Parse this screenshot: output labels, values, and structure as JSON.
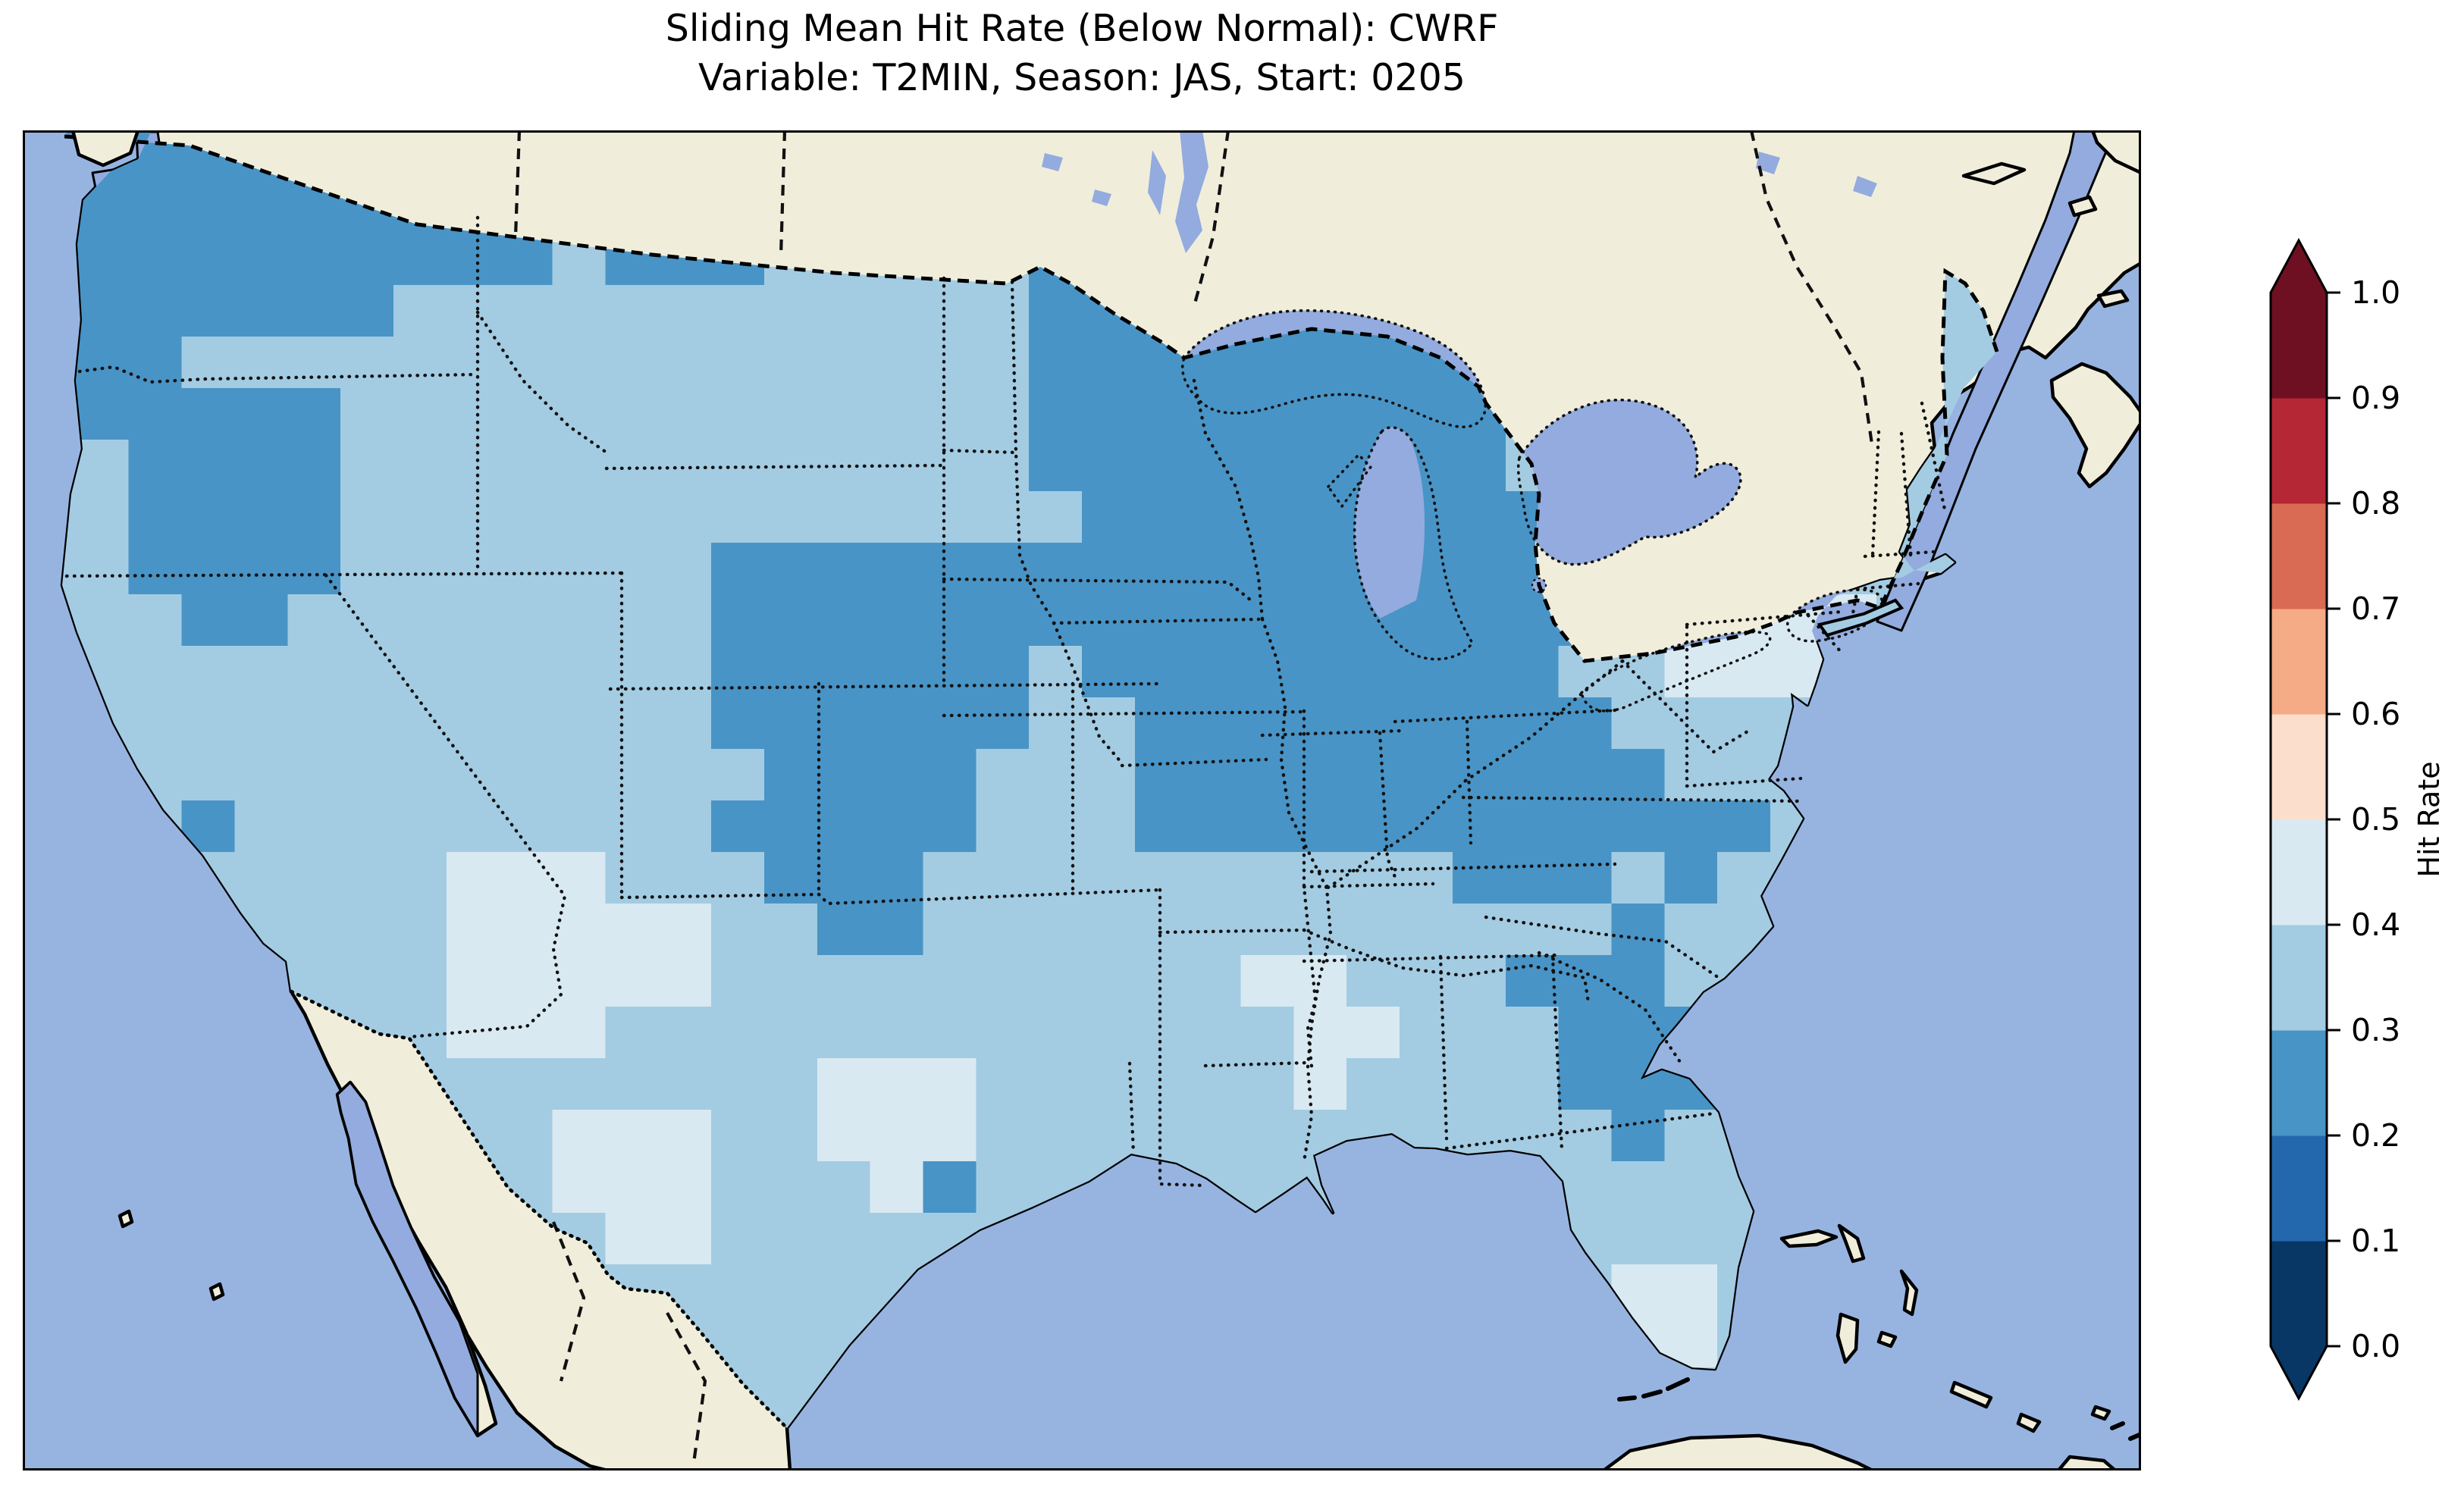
{
  "figure": {
    "title_line1": "Sliding Mean Hit Rate (Below Normal): CWRF",
    "title_line2": "Variable: T2MIN, Season: JAS, Start: 0205"
  },
  "chart_data": {
    "type": "heatmap",
    "subtype": "gridded_geographic_map_conus",
    "title": "Sliding Mean Hit Rate (Below Normal): CWRF",
    "subtitle": "Variable: T2MIN, Season: JAS, Start: 0205",
    "model": "CWRF",
    "variable": "T2MIN",
    "season": "JAS",
    "start": "0205",
    "metric": "Sliding Mean Hit Rate",
    "category": "Below Normal",
    "legend_position": "right colorbar",
    "colorbar": {
      "label": "Hit Rate",
      "ticks": [
        "0.0",
        "0.1",
        "0.2",
        "0.3",
        "0.4",
        "0.5",
        "0.6",
        "0.7",
        "0.8",
        "0.9",
        "1.0"
      ],
      "bin_edges": [
        0.0,
        0.1,
        0.2,
        0.3,
        0.4,
        0.5,
        0.6,
        0.7,
        0.8,
        0.9,
        1.0
      ],
      "bin_colors": [
        "#083766",
        "#2368ac",
        "#4994c6",
        "#a3cce3",
        "#d9e9f2",
        "#fbdecb",
        "#f5ab86",
        "#d96a53",
        "#b52734",
        "#6e1021"
      ],
      "extend": "both",
      "under_color": "#083766",
      "over_color": "#6e1021",
      "orientation": "vertical"
    },
    "map_colors": {
      "ocean": "#97b4e1",
      "land_no_data": "#f0eedb",
      "lakes_rivers": "#93abde",
      "coastline": "#000000",
      "state_borders": "dotted black",
      "international_borders": "dashed black"
    },
    "value_range_observed": [
      0.2,
      0.5
    ],
    "grid": {
      "ncols": 40,
      "nrows": 26,
      "cell_legend": {
        "2": "hit rate 0.2-0.3",
        "3": "hit rate 0.3-0.4",
        "4": "hit rate 0.4-0.5"
      },
      "rows": [
        "2222222222333333333333333333333333333333",
        "2222222222322233333333333333333333333333",
        "2222222222322233333222333333333333333333",
        "2222222333333333333222222222333333333333",
        "2223333333333333333222222222333333333333",
        "2222223333333333333222222222333334433333",
        "3322223333333333333222222222333334333333",
        "3322223333333333333322222222223333333333",
        "3322223333333222222222222222224444333333",
        "3332233333333222222222222222224444433333",
        "3333333333333222222322222222233444433333",
        "3333333333333222222332222222223333333333",
        "3333333333333322223332222222222333333333",
        "3332333333333222223332222222222223333333",
        "3333333344433322233333333332223233333333",
        "3333333344444332233333333333332333333333",
        "3333333344444333333333344333222333333333",
        "3333333344433333333333334433322233333333",
        "3333333333333334443333334333322233333333",
        "3333333333444334443333333333332333333333",
        "3333333333444333423333333333333333333333",
        "3333333333344333333333333333333333333333",
        "3333333333333333333333333333334433333333",
        "3333333333333333333333333333334433333333",
        "3333333333333333333333333333333333333333",
        "3333333333333333333333333333333333333333"
      ]
    }
  }
}
